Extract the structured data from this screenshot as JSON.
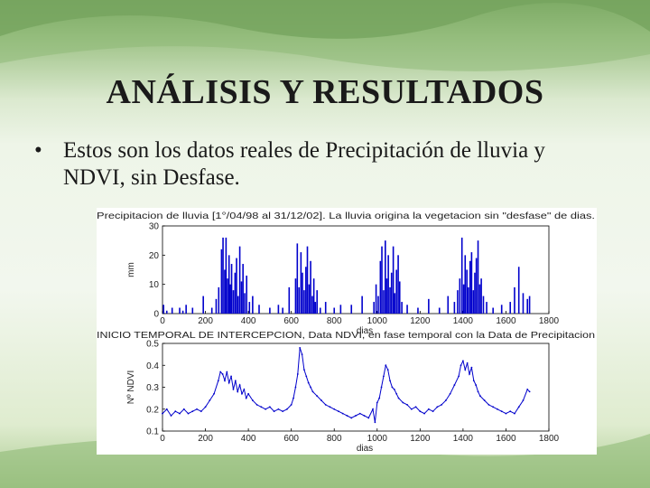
{
  "slide": {
    "title": "ANÁLISIS Y RESULTADOS",
    "bullet": "•",
    "bullet_text": "Estos son los datos reales de Precipitación de lluvia y NDVI, sin Desfase."
  },
  "colors": {
    "series": "#0000cc",
    "axis": "#000000"
  },
  "chart_data": [
    {
      "type": "bar",
      "title": "Precipitacion de lluvia [1°/04/98 al 31/12/02]. La lluvia origina la vegetacion sin \"desfase\" de dias.",
      "xlabel": "dias",
      "ylabel": "mm",
      "xlim": [
        0,
        1800
      ],
      "ylim": [
        0,
        30
      ],
      "xticks": [
        0,
        200,
        400,
        600,
        800,
        1000,
        1200,
        1400,
        1600,
        1800
      ],
      "yticks": [
        0,
        10,
        20,
        30
      ],
      "grid": false,
      "series": [
        {
          "x": [
            5,
            20,
            45,
            80,
            95,
            110,
            140,
            190,
            230,
            250,
            262,
            275,
            282,
            290,
            296,
            303,
            310,
            316,
            322,
            330,
            338,
            345,
            352,
            360,
            368,
            375,
            383,
            392,
            405,
            420,
            450,
            500,
            540,
            560,
            590,
            620,
            628,
            636,
            645,
            652,
            660,
            668,
            675,
            683,
            690,
            698,
            705,
            712,
            720,
            735,
            760,
            800,
            830,
            880,
            930,
            985,
            995,
            1005,
            1015,
            1022,
            1030,
            1038,
            1045,
            1052,
            1060,
            1067,
            1075,
            1082,
            1090,
            1098,
            1105,
            1115,
            1140,
            1190,
            1240,
            1290,
            1330,
            1360,
            1375,
            1385,
            1395,
            1403,
            1410,
            1418,
            1425,
            1433,
            1440,
            1448,
            1455,
            1462,
            1470,
            1478,
            1485,
            1495,
            1510,
            1540,
            1580,
            1620,
            1640,
            1660,
            1680,
            1700,
            1710
          ],
          "values": [
            3,
            1,
            2,
            2,
            1,
            3,
            2,
            6,
            2,
            5,
            9,
            22,
            26,
            15,
            26,
            12,
            20,
            10,
            17,
            8,
            14,
            19,
            6,
            23,
            11,
            17,
            7,
            13,
            4,
            6,
            3,
            2,
            3,
            2,
            9,
            12,
            24,
            9,
            21,
            14,
            8,
            16,
            23,
            10,
            18,
            6,
            12,
            4,
            8,
            2,
            4,
            2,
            3,
            3,
            6,
            4,
            10,
            6,
            18,
            23,
            8,
            25,
            12,
            20,
            9,
            14,
            23,
            7,
            15,
            20,
            11,
            4,
            3,
            2,
            5,
            2,
            6,
            4,
            8,
            12,
            26,
            10,
            20,
            15,
            9,
            18,
            21,
            8,
            14,
            19,
            25,
            10,
            12,
            6,
            4,
            2,
            3,
            4,
            9,
            16,
            7,
            5,
            6
          ]
        }
      ]
    },
    {
      "type": "line",
      "title": "INICIO TEMPORAL DE INTERCEPCION, Data NDVI, en fase temporal con la Data de Precipitacion",
      "xlabel": "dias",
      "ylabel": "Nº NDVI",
      "xlim": [
        0,
        1800
      ],
      "ylim": [
        0.1,
        0.5
      ],
      "xticks": [
        0,
        200,
        400,
        600,
        800,
        1000,
        1200,
        1400,
        1600,
        1800
      ],
      "yticks": [
        0.1,
        0.2,
        0.3,
        0.4,
        0.5
      ],
      "grid": false,
      "series": [
        {
          "x": [
            0,
            20,
            40,
            60,
            80,
            100,
            120,
            140,
            160,
            180,
            200,
            220,
            240,
            260,
            270,
            280,
            290,
            300,
            310,
            320,
            330,
            340,
            350,
            360,
            370,
            380,
            390,
            400,
            420,
            440,
            460,
            480,
            500,
            520,
            540,
            560,
            580,
            600,
            610,
            620,
            630,
            640,
            650,
            660,
            670,
            680,
            690,
            700,
            720,
            740,
            760,
            780,
            800,
            820,
            840,
            860,
            880,
            900,
            920,
            940,
            960,
            980,
            990,
            1000,
            1010,
            1020,
            1030,
            1040,
            1050,
            1060,
            1070,
            1080,
            1090,
            1100,
            1120,
            1140,
            1160,
            1180,
            1200,
            1220,
            1240,
            1260,
            1280,
            1300,
            1320,
            1340,
            1360,
            1380,
            1390,
            1400,
            1410,
            1420,
            1430,
            1440,
            1450,
            1460,
            1470,
            1480,
            1500,
            1520,
            1540,
            1560,
            1580,
            1600,
            1620,
            1640,
            1660,
            1680,
            1700,
            1710
          ],
          "values": [
            0.18,
            0.2,
            0.17,
            0.19,
            0.18,
            0.2,
            0.18,
            0.19,
            0.2,
            0.19,
            0.21,
            0.24,
            0.27,
            0.33,
            0.37,
            0.36,
            0.33,
            0.37,
            0.32,
            0.35,
            0.29,
            0.33,
            0.28,
            0.31,
            0.27,
            0.29,
            0.25,
            0.27,
            0.24,
            0.22,
            0.21,
            0.2,
            0.21,
            0.19,
            0.2,
            0.19,
            0.2,
            0.22,
            0.25,
            0.3,
            0.36,
            0.48,
            0.45,
            0.38,
            0.35,
            0.32,
            0.3,
            0.28,
            0.26,
            0.24,
            0.22,
            0.21,
            0.2,
            0.19,
            0.18,
            0.17,
            0.16,
            0.17,
            0.18,
            0.17,
            0.16,
            0.2,
            0.14,
            0.23,
            0.25,
            0.3,
            0.35,
            0.4,
            0.38,
            0.33,
            0.3,
            0.29,
            0.27,
            0.25,
            0.23,
            0.22,
            0.2,
            0.21,
            0.19,
            0.18,
            0.2,
            0.19,
            0.21,
            0.22,
            0.24,
            0.27,
            0.31,
            0.35,
            0.4,
            0.42,
            0.38,
            0.41,
            0.36,
            0.39,
            0.33,
            0.31,
            0.28,
            0.26,
            0.24,
            0.22,
            0.21,
            0.2,
            0.19,
            0.18,
            0.19,
            0.18,
            0.21,
            0.24,
            0.29,
            0.28
          ]
        }
      ]
    }
  ]
}
